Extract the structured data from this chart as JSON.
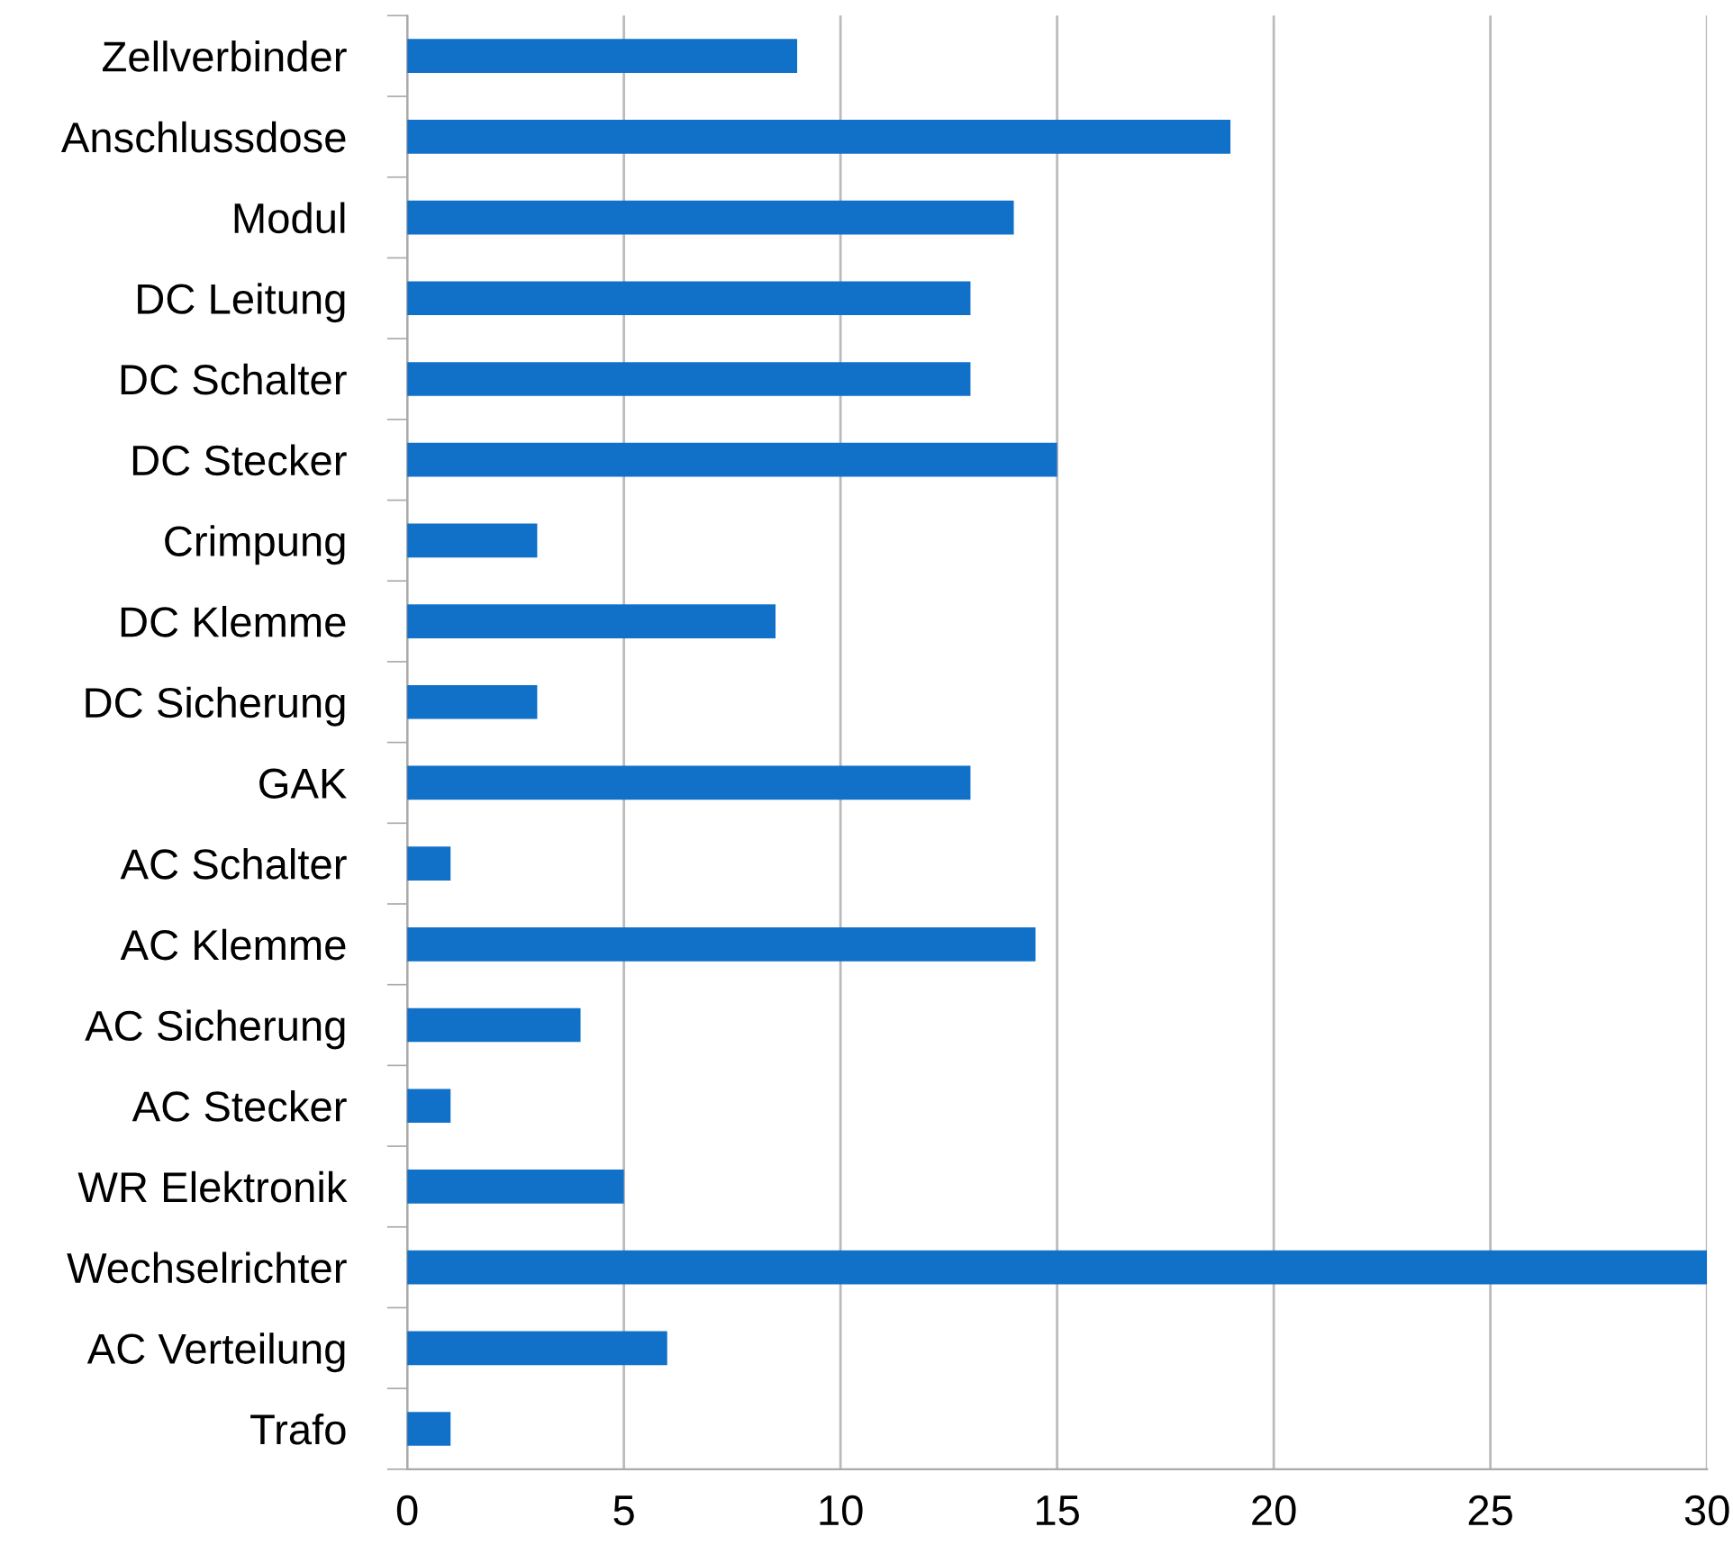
{
  "chart_data": {
    "type": "bar",
    "orientation": "horizontal",
    "categories": [
      "Zellverbinder",
      "Anschlussdose",
      "Modul",
      "DC Leitung",
      "DC Schalter",
      "DC Stecker",
      "Crimpung",
      "DC Klemme",
      "DC Sicherung",
      "GAK",
      "AC Schalter",
      "AC Klemme",
      "AC Sicherung",
      "AC Stecker",
      "WR Elektronik",
      "Wechselrichter",
      "AC Verteilung",
      "Trafo"
    ],
    "values": [
      9,
      19,
      14,
      13,
      13,
      15,
      3,
      8.5,
      3,
      13,
      1,
      14.5,
      4,
      1,
      5,
      30,
      6,
      1
    ],
    "color": "#1170c8",
    "xlim": [
      0,
      30
    ],
    "xticks": [
      0,
      5,
      10,
      15,
      20,
      25,
      30
    ],
    "grid": "x",
    "legend": false
  }
}
